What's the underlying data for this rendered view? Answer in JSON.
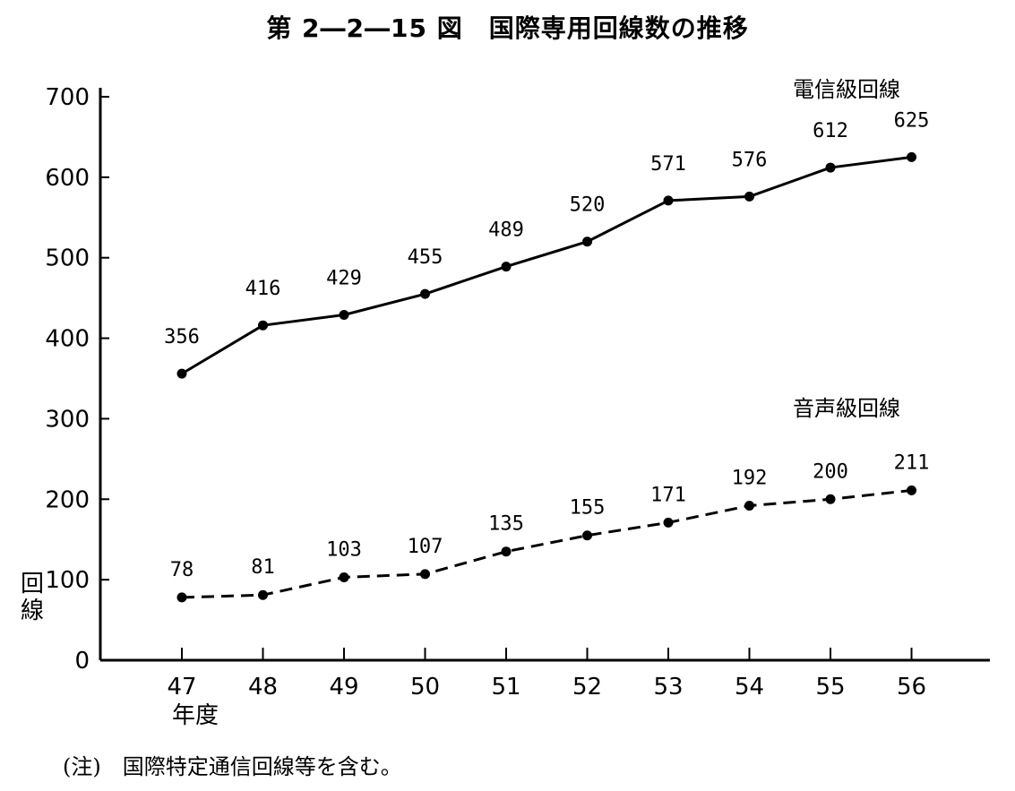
{
  "chart_data": {
    "type": "line",
    "title": "第 2―2―15 図　国際専用回線数の推移",
    "categories": [
      "47",
      "48",
      "49",
      "50",
      "51",
      "52",
      "53",
      "54",
      "55",
      "56"
    ],
    "xlabel": "年度",
    "ylabel": "回線",
    "ylim": [
      0,
      700
    ],
    "yticks": [
      0,
      100,
      200,
      300,
      400,
      500,
      600,
      700
    ],
    "grid": false,
    "series": [
      {
        "name": "電信級回線",
        "style": "solid",
        "values": [
          356,
          416,
          429,
          455,
          489,
          520,
          571,
          576,
          612,
          625
        ]
      },
      {
        "name": "音声級回線",
        "style": "dashed",
        "values": [
          78,
          81,
          103,
          107,
          135,
          155,
          171,
          192,
          200,
          211
        ]
      }
    ],
    "note": "(注)　国際特定通信回線等を含む。"
  },
  "colors": {
    "line": "#000000",
    "background": "#ffffff"
  }
}
